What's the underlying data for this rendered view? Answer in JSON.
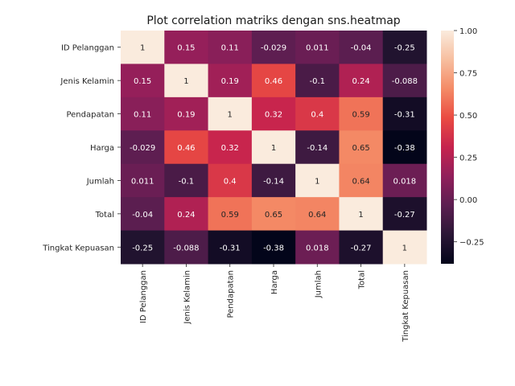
{
  "chart_data": {
    "type": "heatmap",
    "title": "Plot correlation matriks dengan sns.heatmap",
    "labels": [
      "ID Pelanggan",
      "Jenis Kelamin",
      "Pendapatan",
      "Harga",
      "Jumlah",
      "Total",
      "Tingkat Kepuasan"
    ],
    "matrix": [
      [
        1,
        0.15,
        0.11,
        -0.029,
        0.011,
        -0.04,
        -0.25
      ],
      [
        0.15,
        1,
        0.19,
        0.46,
        -0.1,
        0.24,
        -0.088
      ],
      [
        0.11,
        0.19,
        1,
        0.32,
        0.4,
        0.59,
        -0.31
      ],
      [
        -0.029,
        0.46,
        0.32,
        1,
        -0.14,
        0.65,
        -0.38
      ],
      [
        0.011,
        -0.1,
        0.4,
        -0.14,
        1,
        0.64,
        0.018
      ],
      [
        -0.04,
        0.24,
        0.59,
        0.65,
        0.64,
        1,
        -0.27
      ],
      [
        -0.25,
        -0.088,
        -0.31,
        -0.38,
        0.018,
        -0.27,
        1
      ]
    ],
    "annotations": [
      [
        "1",
        "0.15",
        "0.11",
        "-0.029",
        "0.011",
        "-0.04",
        "-0.25"
      ],
      [
        "0.15",
        "1",
        "0.19",
        "0.46",
        "-0.1",
        "0.24",
        "-0.088"
      ],
      [
        "0.11",
        "0.19",
        "1",
        "0.32",
        "0.4",
        "0.59",
        "-0.31"
      ],
      [
        "-0.029",
        "0.46",
        "0.32",
        "1",
        "-0.14",
        "0.65",
        "-0.38"
      ],
      [
        "0.011",
        "-0.1",
        "0.4",
        "-0.14",
        "1",
        "0.64",
        "0.018"
      ],
      [
        "-0.04",
        "0.24",
        "0.59",
        "0.65",
        "0.64",
        "1",
        "-0.27"
      ],
      [
        "-0.25",
        "-0.088",
        "-0.31",
        "-0.38",
        "0.018",
        "-0.27",
        "1"
      ]
    ],
    "colorbar": {
      "vmin": -0.38,
      "vmax": 1,
      "ticks": [
        -0.25,
        0,
        0.25,
        0.5,
        0.75,
        1
      ],
      "tick_labels": [
        "−0.25",
        "0.00",
        "0.25",
        "0.50",
        "0.75",
        "1.00"
      ]
    },
    "colormap": "rocket",
    "colormap_stops": [
      "#03051a",
      "#2b1736",
      "#5c1e51",
      "#911f5b",
      "#c6234e",
      "#ea4b42",
      "#f48b66",
      "#f7be9f",
      "#faebdd"
    ]
  }
}
